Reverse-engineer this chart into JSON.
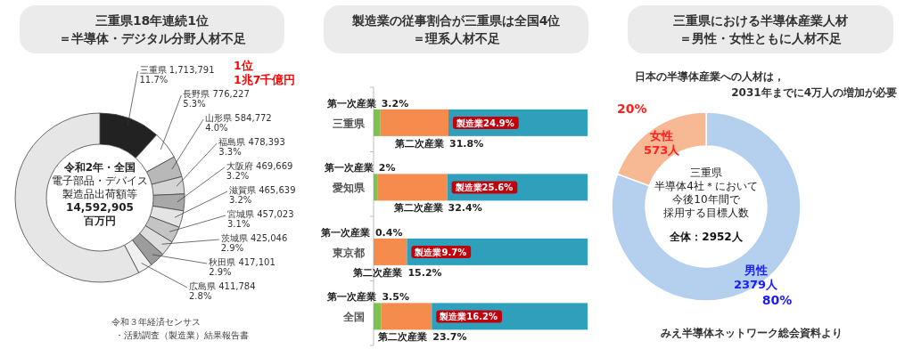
{
  "chart_data": [
    {
      "type": "donut",
      "title": "三重県18年連続1位＝半導体・デジタル分野人材不足",
      "categories": [
        "三重県",
        "長野県",
        "山形県",
        "福島県",
        "大阪府",
        "滋賀県",
        "宮城県",
        "茨城県",
        "秋田県",
        "広島県",
        null
      ],
      "values": [
        11.7,
        5.3,
        4.0,
        3.3,
        3.2,
        3.2,
        3.1,
        2.9,
        2.9,
        2.8,
        57.6
      ],
      "value_labels": [
        "1,713,791\n11.7%",
        "776,227\n5.3%",
        "584,772\n4.0%",
        "478,393\n3.3%",
        "469,669\n3.2%",
        "465,639\n3.2%",
        "457,023\n3.1%",
        "425,046\n2.9%",
        "417,101\n2.9%",
        "411,784\n2.8%",
        null
      ],
      "colors": [
        "#222222",
        "#ffffff",
        "#b8b8b8",
        "#d4d4d4",
        "#a8a8a8",
        "#e4e4e4",
        "#c4c4c4",
        "#dcdcdc",
        "#9c9c9c",
        "#f0f0f0",
        "#e6e6e6"
      ],
      "annotations": [
        "令和2年・全国",
        "電子部品・デバイス",
        "製造品出荷額等",
        "14,592,905",
        "百万円",
        "1位",
        "1兆7千億円",
        "令和３年経済センサス",
        "・活動調査（製造業）結果報告書"
      ]
    },
    {
      "type": "bar",
      "orientation": "horizontal",
      "stacked": true,
      "title": "製造業の従事割合が三重県は全国4位＝理系人材不足",
      "categories": [
        "三重県",
        "愛知県",
        "東京都",
        "全国"
      ],
      "series": [
        {
          "name": "第一次産業",
          "color": "#7cc24e",
          "values": [
            3.2,
            2,
            0.4,
            3.5
          ],
          "value_labels": [
            "3.2%",
            "2%",
            "0.4%",
            "3.5%"
          ]
        },
        {
          "name": "第二次産業",
          "color": "#f58b4c",
          "values": [
            31.8,
            32.4,
            15.2,
            23.7
          ],
          "value_labels": [
            "31.8%",
            "32.4%",
            "15.2%",
            "23.7%"
          ]
        },
        {
          "color": "#2ea0bc",
          "values": [
            65.0,
            65.6,
            84.4,
            72.8
          ]
        }
      ],
      "annotations": [
        "製造業24.9%",
        "製造業25.6%",
        "製造業9.7%",
        "製造業16.2%"
      ]
    },
    {
      "type": "donut",
      "title": "三重県における半導体産業人材＝男性・女性ともに人材不足",
      "subtitle": "日本の半導体産業への人材は，2031年までに4万人の増加が必要",
      "categories": [
        "男性",
        "女性"
      ],
      "values": [
        2379,
        573
      ],
      "value_labels": [
        "2379人",
        "573人"
      ],
      "colors": [
        "#b4d0ee",
        "#f7b994"
      ],
      "annotations": [
        {
          "text": "80%",
          "x": "男性"
        },
        {
          "text": "20%",
          "x": "女性"
        },
        "三重県",
        "半導体4社＊において",
        "今後10年間で",
        "採用する目標人数",
        "全体：2952人",
        "みえ半導体ネットワーク総会資料より"
      ]
    }
  ]
}
